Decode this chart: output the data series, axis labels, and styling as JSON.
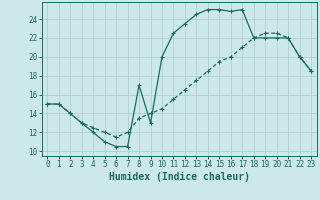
{
  "xlabel": "Humidex (Indice chaleur)",
  "bg_color": "#cce8e8",
  "grid_color": "#aacccc",
  "line_color": "#1a6b5e",
  "xlim": [
    -0.5,
    23.5
  ],
  "ylim": [
    9.5,
    25.8
  ],
  "xticks": [
    0,
    1,
    2,
    3,
    4,
    5,
    6,
    7,
    8,
    9,
    10,
    11,
    12,
    13,
    14,
    15,
    16,
    17,
    18,
    19,
    20,
    21,
    22,
    23
  ],
  "yticks": [
    10,
    12,
    14,
    16,
    18,
    20,
    22,
    24
  ],
  "line1_x": [
    0,
    1,
    2,
    3,
    4,
    5,
    6,
    7,
    8,
    9,
    10,
    11,
    12,
    13,
    14,
    15,
    16,
    17,
    18,
    19,
    20,
    21,
    22,
    23
  ],
  "line1_y": [
    15,
    15,
    14,
    13,
    12,
    11,
    10.5,
    10.5,
    17,
    13,
    20,
    22.5,
    23.5,
    24.5,
    25,
    25,
    24.8,
    25,
    22,
    22,
    22,
    22,
    20,
    18.5
  ],
  "line2_x": [
    0,
    1,
    2,
    3,
    4,
    5,
    6,
    7,
    8,
    9,
    10,
    11,
    12,
    13,
    14,
    15,
    16,
    17,
    18,
    19,
    20,
    21,
    22,
    23
  ],
  "line2_y": [
    15,
    15,
    14,
    13,
    12.5,
    12,
    11.5,
    12,
    13.5,
    14,
    14.5,
    15.5,
    16.5,
    17.5,
    18.5,
    19.5,
    20,
    21,
    22,
    22.5,
    22.5,
    22,
    20,
    18.5
  ],
  "tick_fontsize": 5.5,
  "xlabel_fontsize": 7,
  "marker_size": 3,
  "linewidth": 0.9
}
